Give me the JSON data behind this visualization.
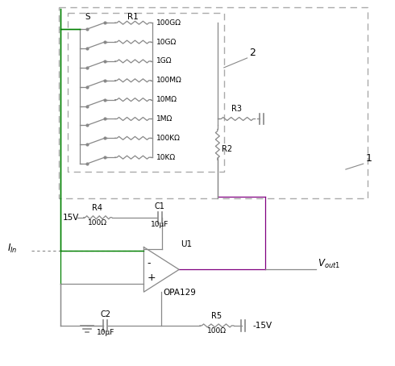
{
  "colors": {
    "wire": "#888888",
    "green": "#008000",
    "purple": "#800080",
    "dashed": "#aaaaaa",
    "text": "#000000"
  },
  "resistor_labels": [
    "100GΩ",
    "10GΩ",
    "1GΩ",
    "100MΩ",
    "10MΩ",
    "1MΩ",
    "100KΩ",
    "10KΩ"
  ],
  "labels": {
    "S": "S",
    "R1": "R1",
    "R2": "R2",
    "R3": "R3",
    "R4": "R4",
    "R5": "R5",
    "C1": "C1",
    "C2": "C2",
    "U1": "U1",
    "OPA129": "OPA129",
    "15V": "15V",
    "neg15V": "-15V",
    "C1val": "10μF",
    "C2val": "10μF",
    "R4val": "100Ω",
    "R5val": "100Ω",
    "Iin": "$I_{In}$",
    "Vout1": "$V_{out1}$",
    "num1": "1",
    "num2": "2"
  }
}
